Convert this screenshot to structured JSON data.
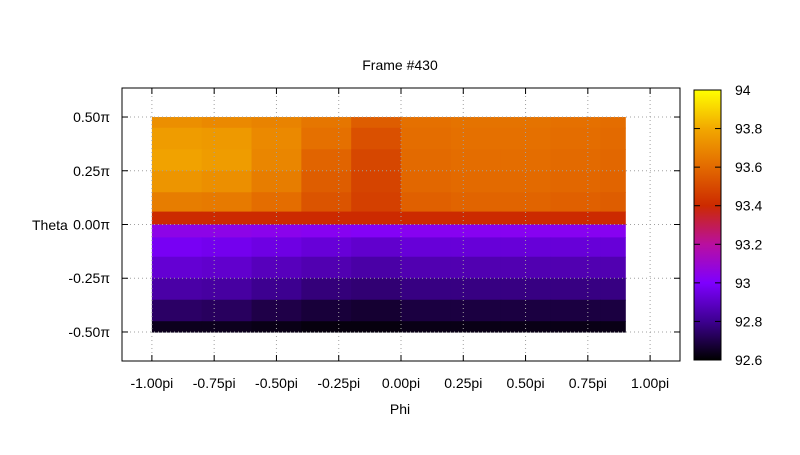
{
  "chart_data": {
    "type": "heatmap",
    "title": "Frame #430",
    "xlabel": "Phi",
    "ylabel": "Theta",
    "grid": true,
    "xlim": [
      -1.12,
      1.12
    ],
    "ylim": [
      -0.635,
      0.635
    ],
    "x_ticks": [
      {
        "value": -1.0,
        "label": "-1.00pi"
      },
      {
        "value": -0.75,
        "label": "-0.75pi"
      },
      {
        "value": -0.5,
        "label": "-0.50pi"
      },
      {
        "value": -0.25,
        "label": "-0.25pi"
      },
      {
        "value": 0.0,
        "label": "0.00pi"
      },
      {
        "value": 0.25,
        "label": "0.25pi"
      },
      {
        "value": 0.5,
        "label": "0.50pi"
      },
      {
        "value": 0.75,
        "label": "0.75pi"
      },
      {
        "value": 1.0,
        "label": "1.00pi"
      }
    ],
    "y_ticks": [
      {
        "value": 0.5,
        "label": "0.50π"
      },
      {
        "value": 0.25,
        "label": "0.25π"
      },
      {
        "value": 0.0,
        "label": "0.00π"
      },
      {
        "value": -0.25,
        "label": "-0.25π"
      },
      {
        "value": -0.5,
        "label": "-0.50π"
      }
    ],
    "data_extent": {
      "x": [
        -1.0,
        0.9
      ],
      "y": [
        -0.5,
        0.5
      ]
    },
    "x": [
      -0.9,
      -0.7,
      -0.5,
      -0.3,
      -0.1,
      0.1,
      0.3,
      0.5,
      0.7,
      0.9
    ],
    "y": [
      0.5,
      0.4,
      0.3,
      0.2,
      0.1,
      0.02,
      -0.02,
      -0.1,
      -0.2,
      -0.3,
      -0.4,
      -0.5
    ],
    "z": [
      [
        93.72,
        93.7,
        93.68,
        93.64,
        93.56,
        93.62,
        93.63,
        93.63,
        93.62,
        93.61
      ],
      [
        93.76,
        93.75,
        93.7,
        93.62,
        93.52,
        93.61,
        93.62,
        93.62,
        93.61,
        93.6
      ],
      [
        93.78,
        93.76,
        93.69,
        93.58,
        93.49,
        93.6,
        93.61,
        93.61,
        93.6,
        93.59
      ],
      [
        93.74,
        93.72,
        93.66,
        93.56,
        93.48,
        93.59,
        93.6,
        93.6,
        93.59,
        93.58
      ],
      [
        93.66,
        93.65,
        93.61,
        93.53,
        93.47,
        93.57,
        93.58,
        93.58,
        93.57,
        93.56
      ],
      [
        93.4,
        93.4,
        93.4,
        93.4,
        93.4,
        93.4,
        93.4,
        93.4,
        93.4,
        93.4
      ],
      [
        93.05,
        93.05,
        93.04,
        93.03,
        93.02,
        93.03,
        93.03,
        93.03,
        93.03,
        93.03
      ],
      [
        92.98,
        92.97,
        92.95,
        92.93,
        92.91,
        92.93,
        92.93,
        92.93,
        92.93,
        92.93
      ],
      [
        92.92,
        92.91,
        92.88,
        92.86,
        92.84,
        92.86,
        92.86,
        92.86,
        92.86,
        92.86
      ],
      [
        92.84,
        92.83,
        92.8,
        92.77,
        92.76,
        92.78,
        92.78,
        92.78,
        92.78,
        92.78
      ],
      [
        92.74,
        92.73,
        92.7,
        92.68,
        92.67,
        92.69,
        92.69,
        92.69,
        92.69,
        92.69
      ],
      [
        92.64,
        92.64,
        92.63,
        92.62,
        92.62,
        92.63,
        92.63,
        92.63,
        92.63,
        92.63
      ]
    ],
    "colorbar": {
      "min": 92.6,
      "max": 94.0,
      "palette": [
        "#000000",
        "#3d0090",
        "#7e00ff",
        "#b90fa0",
        "#cc2a00",
        "#e36a00",
        "#f2a800",
        "#ffff00"
      ],
      "ticks": [
        {
          "value": 92.6,
          "label": "92.6"
        },
        {
          "value": 92.8,
          "label": "92.8"
        },
        {
          "value": 93.0,
          "label": "93"
        },
        {
          "value": 93.2,
          "label": "93.2"
        },
        {
          "value": 93.4,
          "label": "93.4"
        },
        {
          "value": 93.6,
          "label": "93.6"
        },
        {
          "value": 93.8,
          "label": "93.8"
        },
        {
          "value": 94.0,
          "label": "94"
        }
      ]
    }
  }
}
